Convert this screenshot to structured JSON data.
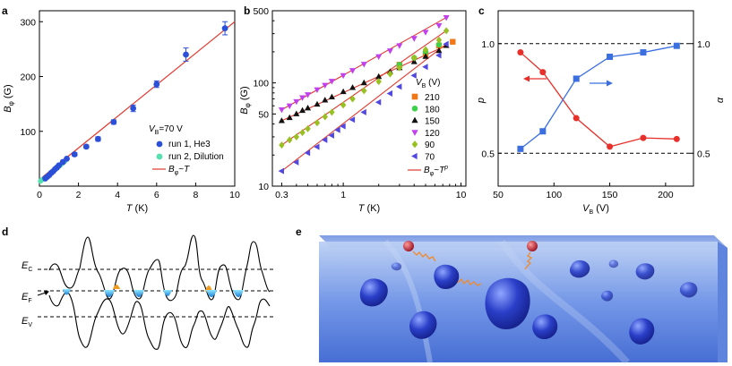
{
  "figure": {
    "panels": [
      {
        "id": "a",
        "label": "a"
      },
      {
        "id": "b",
        "label": "b"
      },
      {
        "id": "c",
        "label": "c"
      },
      {
        "id": "d",
        "label": "d"
      },
      {
        "id": "e",
        "label": "e"
      }
    ]
  },
  "chart_data": [
    {
      "panel": "a",
      "type": "scatter",
      "xlabel": "T (K)",
      "ylabel": "B_φ (G)",
      "xlim": [
        0,
        10
      ],
      "ylim": [
        0,
        320
      ],
      "xticks": [
        0,
        2,
        4,
        6,
        8,
        10
      ],
      "yticks": [
        100,
        200,
        300
      ],
      "annotation": "V_B=70 V",
      "series": [
        {
          "name": "run 1, He3",
          "color": "#2b4fd6",
          "points": [
            [
              0.3,
              14
            ],
            [
              0.4,
              17
            ],
            [
              0.5,
              20
            ],
            [
              0.6,
              24
            ],
            [
              0.7,
              27
            ],
            [
              0.8,
              31
            ],
            [
              0.9,
              34
            ],
            [
              1.0,
              38
            ],
            [
              1.2,
              44
            ],
            [
              1.4,
              50
            ],
            [
              1.8,
              58
            ],
            [
              2.4,
              72
            ],
            [
              3.0,
              86
            ],
            [
              3.8,
              117
            ],
            [
              4.8,
              142
            ],
            [
              6.0,
              186
            ],
            [
              7.5,
              240
            ],
            [
              9.5,
              288
            ]
          ],
          "errors": [
            1,
            1,
            1,
            1,
            1,
            1,
            1,
            2,
            2,
            2,
            3,
            3,
            4,
            4,
            6,
            6,
            12,
            12
          ]
        },
        {
          "name": "run 2, Dilution",
          "color": "#55e0b0",
          "points": [
            [
              0.05,
              9
            ],
            [
              0.08,
              10
            ],
            [
              0.1,
              11
            ],
            [
              0.15,
              12
            ],
            [
              0.2,
              13
            ],
            [
              0.25,
              14
            ],
            [
              0.3,
              15
            ],
            [
              0.35,
              16
            ],
            [
              0.4,
              18
            ],
            [
              0.5,
              21
            ],
            [
              0.6,
              24
            ],
            [
              0.7,
              27
            ],
            [
              0.8,
              30
            ],
            [
              0.9,
              33
            ],
            [
              1.0,
              36
            ],
            [
              1.1,
              39
            ],
            [
              1.2,
              42
            ],
            [
              1.3,
              45
            ]
          ]
        },
        {
          "name": "B_φ~T",
          "type": "line",
          "color": "#e03a2f",
          "points": [
            [
              0,
              12
            ],
            [
              10,
              300
            ]
          ]
        }
      ]
    },
    {
      "panel": "b",
      "type": "scatter",
      "xscale": "log",
      "yscale": "log",
      "xlabel": "T (K)",
      "ylabel": "B_φ (G)",
      "xlim": [
        0.25,
        11
      ],
      "ylim": [
        10,
        500
      ],
      "xticks": [
        0.3,
        1,
        10
      ],
      "yticks": [
        10,
        50,
        100,
        500
      ],
      "legend_title": "V_B (V)",
      "legend_position": "right",
      "series": [
        {
          "name": "210",
          "marker": "square",
          "color": "#f07818",
          "points": [
            [
              3,
              150
            ],
            [
              5,
              190
            ],
            [
              6.5,
              230
            ],
            [
              8.5,
              250
            ]
          ]
        },
        {
          "name": "180",
          "marker": "circle",
          "color": "#3ed04a",
          "points": [
            [
              3,
              150
            ],
            [
              4,
              175
            ],
            [
              5,
              200
            ],
            [
              6.5,
              235
            ]
          ]
        },
        {
          "name": "150",
          "marker": "triangle-up",
          "color": "#111111",
          "points": [
            [
              0.3,
              43
            ],
            [
              0.35,
              46
            ],
            [
              0.4,
              50
            ],
            [
              0.45,
              54
            ],
            [
              0.5,
              57
            ],
            [
              0.6,
              62
            ],
            [
              0.7,
              68
            ],
            [
              0.8,
              73
            ],
            [
              1.0,
              82
            ],
            [
              1.2,
              90
            ],
            [
              1.5,
              100
            ],
            [
              2.0,
              115
            ],
            [
              2.5,
              128
            ],
            [
              3.0,
              140
            ],
            [
              4.0,
              160
            ],
            [
              5.0,
              180
            ],
            [
              6.5,
              205
            ],
            [
              7.5,
              230
            ]
          ]
        },
        {
          "name": "120",
          "marker": "triangle-down",
          "color": "#c040f0",
          "points": [
            [
              0.3,
              55
            ],
            [
              0.35,
              60
            ],
            [
              0.4,
              66
            ],
            [
              0.45,
              72
            ],
            [
              0.5,
              77
            ],
            [
              0.6,
              86
            ],
            [
              0.7,
              95
            ],
            [
              0.8,
              104
            ],
            [
              1.0,
              118
            ],
            [
              1.2,
              132
            ],
            [
              1.5,
              152
            ],
            [
              2.0,
              180
            ],
            [
              2.5,
              205
            ],
            [
              3.0,
              230
            ],
            [
              4.0,
              270
            ],
            [
              5.0,
              310
            ],
            [
              6.5,
              360
            ],
            [
              7.5,
              430
            ]
          ]
        },
        {
          "name": "90",
          "marker": "diamond",
          "color": "#98c020",
          "points": [
            [
              0.3,
              25
            ],
            [
              0.35,
              28
            ],
            [
              0.4,
              30
            ],
            [
              0.45,
              33
            ],
            [
              0.5,
              36
            ],
            [
              0.6,
              41
            ],
            [
              0.7,
              47
            ],
            [
              0.8,
              52
            ],
            [
              1.0,
              61
            ],
            [
              1.2,
              70
            ],
            [
              1.5,
              84
            ],
            [
              2.0,
              103
            ],
            [
              2.5,
              122
            ],
            [
              3.0,
              140
            ],
            [
              4.0,
              175
            ],
            [
              5.0,
              210
            ],
            [
              6.5,
              260
            ],
            [
              7.5,
              320
            ]
          ]
        },
        {
          "name": "70",
          "marker": "triangle-left",
          "color": "#5048e0",
          "points": [
            [
              0.3,
              14
            ],
            [
              0.4,
              17
            ],
            [
              0.5,
              21
            ],
            [
              0.6,
              24
            ],
            [
              0.7,
              28
            ],
            [
              0.8,
              31
            ],
            [
              0.9,
              35
            ],
            [
              1.0,
              38
            ],
            [
              1.2,
              44
            ],
            [
              1.5,
              52
            ],
            [
              2.0,
              65
            ],
            [
              2.5,
              79
            ],
            [
              3.0,
              92
            ],
            [
              4.0,
              118
            ],
            [
              5.0,
              143
            ],
            [
              6.5,
              185
            ],
            [
              7.5,
              238
            ]
          ]
        },
        {
          "name": "B_φ~T^p",
          "type": "line",
          "color": "#e03a2f"
        }
      ]
    },
    {
      "panel": "c",
      "type": "line",
      "xlabel": "V_B (V)",
      "ylabel_left": "p",
      "ylabel_right": "α",
      "xlim": [
        50,
        225
      ],
      "ylim": [
        0.35,
        1.15
      ],
      "xticks": [
        50,
        100,
        150,
        200
      ],
      "yticks_left": [
        0.5,
        1.0
      ],
      "yticks_right": [
        0.5,
        1.0
      ],
      "series": [
        {
          "name": "p",
          "axis": "left",
          "marker": "circle",
          "color": "#e8302a",
          "x": [
            70,
            90,
            120,
            150,
            180,
            210
          ],
          "values": [
            0.96,
            0.87,
            0.66,
            0.53,
            0.57,
            0.565
          ]
        },
        {
          "name": "α",
          "axis": "right",
          "marker": "square",
          "color": "#3b6fe0",
          "x": [
            70,
            90,
            120,
            150,
            180,
            210
          ],
          "values": [
            0.52,
            0.6,
            0.84,
            0.94,
            0.96,
            0.99
          ]
        }
      ]
    }
  ],
  "panel_d": {
    "labels": [
      "E_C",
      "E_F",
      "E_V"
    ]
  }
}
